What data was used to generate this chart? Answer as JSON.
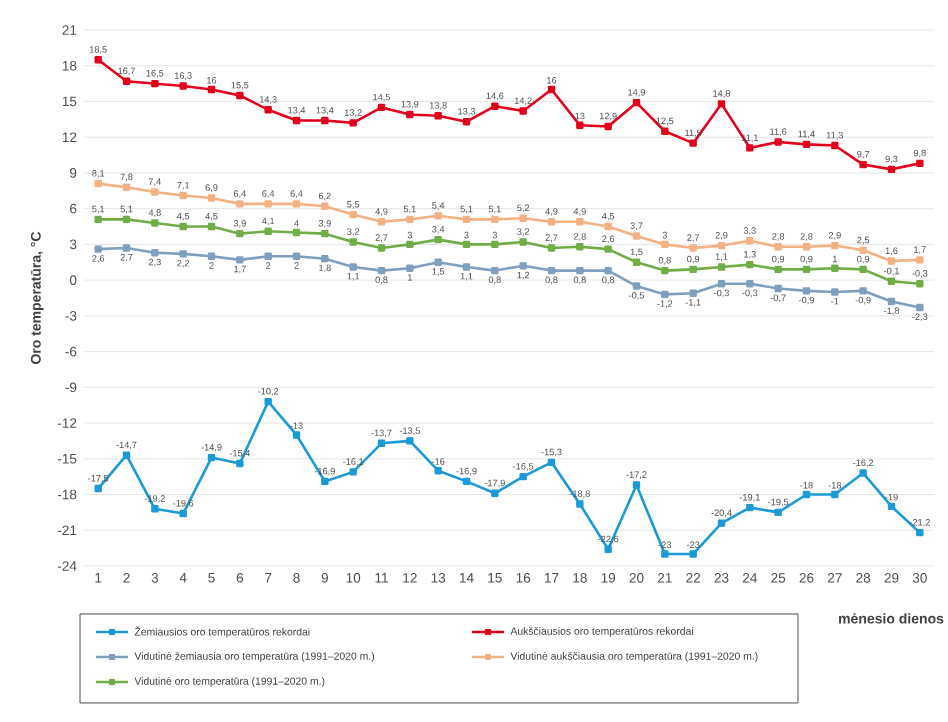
{
  "chart_data": {
    "type": "line",
    "xlabel": "mėnesio dienos",
    "ylabel": "Oro temperatūra, °C",
    "categories": [
      "1",
      "2",
      "3",
      "4",
      "5",
      "6",
      "7",
      "8",
      "9",
      "10",
      "11",
      "12",
      "13",
      "14",
      "15",
      "16",
      "17",
      "18",
      "19",
      "20",
      "21",
      "22",
      "23",
      "24",
      "25",
      "26",
      "27",
      "28",
      "29",
      "30"
    ],
    "series": [
      {
        "name": "Žemiausios oro temperatūros rekordai",
        "color": "#1a9ad6",
        "values": [
          -17.5,
          -14.7,
          -19.2,
          -19.6,
          -14.9,
          -15.4,
          -10.2,
          -13,
          -16.9,
          -16.1,
          -13.7,
          -13.5,
          -16,
          -16.9,
          -17.9,
          -16.5,
          -15.3,
          -18.8,
          -22.6,
          -17.2,
          -23,
          -23,
          -20.4,
          -19.1,
          -19.5,
          -18,
          -18,
          -16.2,
          -19,
          -21.2
        ],
        "value_labels": [
          "-17,5",
          "-14,7",
          "-19,2",
          "-19,6",
          "-14,9",
          "-15,4",
          "-10,2",
          "-13",
          "-16,9",
          "-16,1",
          "-13,7",
          "-13,5",
          "-16",
          "-16,9",
          "-17,9",
          "-16,5",
          "-15,3",
          "-18,8",
          "-22,6",
          "-17,2",
          "-23",
          "-23",
          "-20,4",
          "-19,1",
          "-19,5",
          "-18",
          "-18",
          "-16,2",
          "-19",
          "-21,2"
        ]
      },
      {
        "name": "Aukščiausios oro temperatūros rekordai",
        "color": "#e3001b",
        "values": [
          18.5,
          16.7,
          16.5,
          16.3,
          16,
          15.5,
          14.3,
          13.4,
          13.4,
          13.2,
          14.5,
          13.9,
          13.8,
          13.3,
          14.6,
          14.2,
          16,
          13,
          12.9,
          14.9,
          12.5,
          11.5,
          14.8,
          11.1,
          11.6,
          11.4,
          11.3,
          9.7,
          9.3,
          9.8
        ],
        "value_labels": [
          "18,5",
          "16,7",
          "16,5",
          "16,3",
          "16",
          "15,5",
          "14,3",
          "13,4",
          "13,4",
          "13,2",
          "14,5",
          "13,9",
          "13,8",
          "13,3",
          "14,6",
          "14,2",
          "16",
          "13",
          "12,9",
          "14,9",
          "12,5",
          "11,5",
          "14,8",
          "11,1",
          "11,6",
          "11,4",
          "11,3",
          "9,7",
          "9,3",
          "9,8"
        ]
      },
      {
        "name": "Vidutinė žemiausia oro temperatūra (1991–2020 m.)",
        "color": "#7f9fbf",
        "values": [
          2.6,
          2.7,
          2.3,
          2.2,
          2,
          1.7,
          2,
          2,
          1.8,
          1.1,
          0.8,
          1,
          1.5,
          1.1,
          0.8,
          1.2,
          0.8,
          0.8,
          0.8,
          -0.5,
          -1.2,
          -1.1,
          -0.3,
          -0.3,
          -0.7,
          -0.9,
          -1,
          -0.9,
          -1.8,
          -2.3
        ],
        "value_labels": [
          "2,6",
          "2,7",
          "2,3",
          "2,2",
          "2",
          "1,7",
          "2",
          "2",
          "1,8",
          "1,1",
          "0,8",
          "1",
          "1,5",
          "1,1",
          "0,8",
          "1,2",
          "0,8",
          "0,8",
          "0,8",
          "-0,5",
          "-1,2",
          "-1,1",
          "-0,3",
          "-0,3",
          "-0,7",
          "-0,9",
          "-1",
          "-0,9",
          "-1,8",
          "-2,3"
        ]
      },
      {
        "name": "Vidutinė aukščiausia oro temperatūra (1991–2020 m.)",
        "color": "#f4b183",
        "values": [
          8.1,
          7.8,
          7.4,
          7.1,
          6.9,
          6.4,
          6.4,
          6.4,
          6.2,
          5.5,
          4.9,
          5.1,
          5.4,
          5.1,
          5.1,
          5.2,
          4.9,
          4.9,
          4.5,
          3.7,
          3,
          2.7,
          2.9,
          3.3,
          2.8,
          2.8,
          2.9,
          2.5,
          1.6,
          1.7
        ],
        "value_labels": [
          "8,1",
          "7,8",
          "7,4",
          "7,1",
          "6,9",
          "6,4",
          "6,4",
          "6,4",
          "6,2",
          "5,5",
          "4,9",
          "5,1",
          "5,4",
          "5,1",
          "5,1",
          "5,2",
          "4,9",
          "4,9",
          "4,5",
          "3,7",
          "3",
          "2,7",
          "2,9",
          "3,3",
          "2,8",
          "2,8",
          "2,9",
          "2,5",
          "1,6",
          "1,7"
        ]
      },
      {
        "name": "Vidutinė oro temperatūra (1991–2020 m.)",
        "color": "#70ad47",
        "values": [
          5.1,
          5.1,
          4.8,
          4.5,
          4.5,
          3.9,
          4.1,
          4,
          3.9,
          3.2,
          2.7,
          3,
          3.4,
          3,
          3,
          3.2,
          2.7,
          2.8,
          2.6,
          1.5,
          0.8,
          0.9,
          1.1,
          1.3,
          0.9,
          0.9,
          1,
          0.9,
          -0.1,
          -0.3
        ],
        "value_labels": [
          "5,1",
          "5,1",
          "4,8",
          "4,5",
          "4,5",
          "3,9",
          "4,1",
          "4",
          "3,9",
          "3,2",
          "2,7",
          "3",
          "3,4",
          "3",
          "3",
          "3,2",
          "2,7",
          "2,8",
          "2,6",
          "1,5",
          "0,8",
          "0,9",
          "1,1",
          "1,3",
          "0,9",
          "0,9",
          "1",
          "0,9",
          "-0,1",
          "-0,3"
        ]
      }
    ],
    "ylim": [
      -24,
      21
    ],
    "yticks": [
      -24,
      -21,
      -18,
      -15,
      -12,
      -9,
      -6,
      -3,
      0,
      3,
      6,
      9,
      12,
      15,
      18,
      21
    ],
    "grid": "y",
    "legend": "bottom",
    "marker": "square",
    "line_style": "solid"
  }
}
